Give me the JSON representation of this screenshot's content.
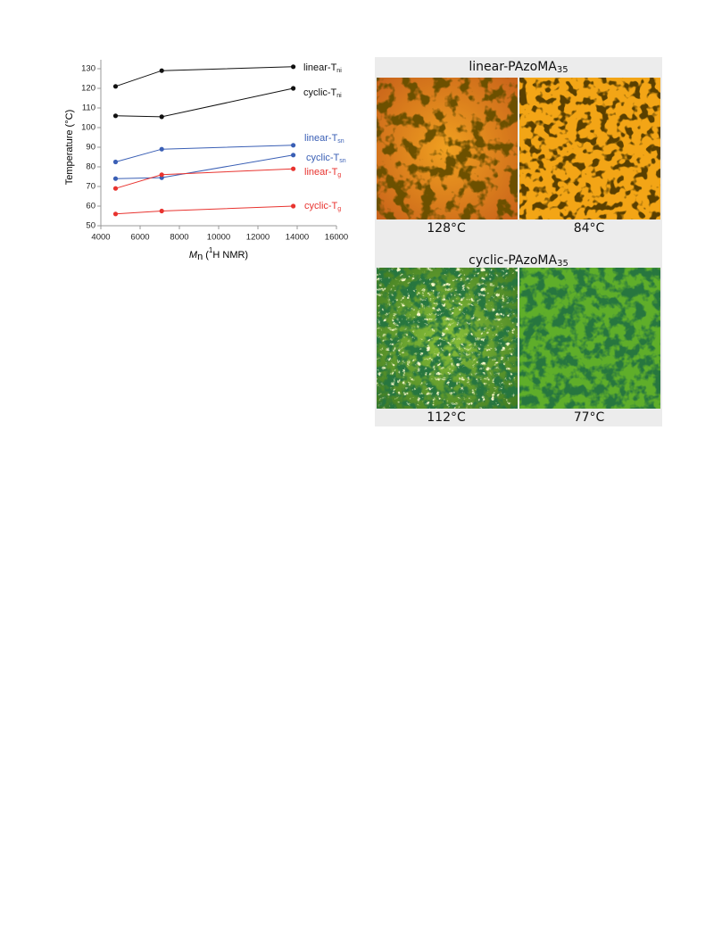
{
  "chart_data": {
    "type": "line",
    "ylabel": "Temperature (°C)",
    "xlabel": {
      "symbol": "M",
      "symbol_sub": "n",
      "open": " (",
      "sup": "1",
      "rest": "H NMR)"
    },
    "x": [
      4750,
      7100,
      13800
    ],
    "xlim": [
      4000,
      16000
    ],
    "xticks": [
      4000,
      6000,
      8000,
      10000,
      12000,
      14000,
      16000
    ],
    "ylim": [
      50,
      130
    ],
    "yticks": [
      50,
      60,
      70,
      80,
      90,
      100,
      110,
      120,
      130
    ],
    "series": [
      {
        "name": "linear-T",
        "subscript": "ni",
        "color": "#111111",
        "values": [
          121,
          129,
          131
        ]
      },
      {
        "name": "cyclic-T",
        "subscript": "ni",
        "color": "#111111",
        "values": [
          106,
          105.5,
          120
        ]
      },
      {
        "name": "linear-T",
        "subscript": "sn",
        "color": "#3a5fb5",
        "values": [
          82.5,
          89,
          91
        ]
      },
      {
        "name": "cyclic-T",
        "subscript": "sn",
        "color": "#3a5fb5",
        "values": [
          74,
          74.5,
          86
        ]
      },
      {
        "name": "linear-T",
        "subscript": "g",
        "color": "#e8332f",
        "values": [
          69,
          76,
          79
        ]
      },
      {
        "name": "cyclic-T",
        "subscript": "g",
        "color": "#e8332f",
        "values": [
          56,
          57.5,
          60
        ]
      }
    ]
  },
  "panels": [
    {
      "title": "linear-PAzoMA",
      "title_sub": "35",
      "labels": [
        "128°C",
        "84°C"
      ]
    },
    {
      "title": "cyclic-PAzoMA",
      "title_sub": "35",
      "labels": [
        "112°C",
        "77°C"
      ]
    }
  ]
}
